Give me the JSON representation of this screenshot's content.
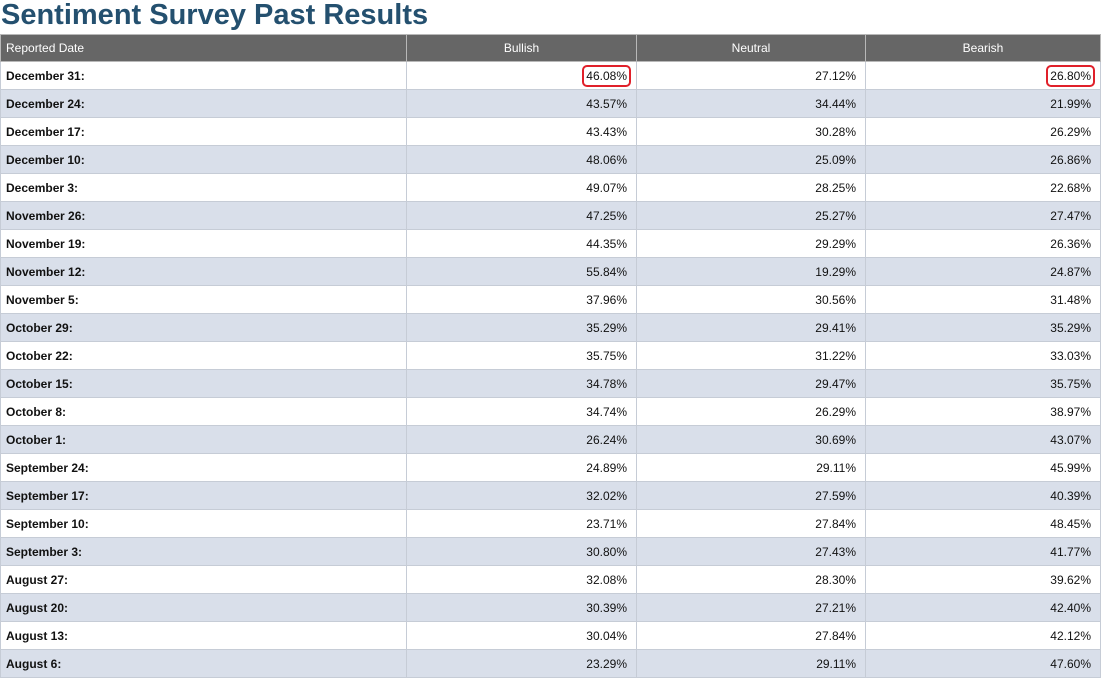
{
  "page": {
    "title": "Sentiment Survey Past Results"
  },
  "table": {
    "headers": {
      "date": "Reported Date",
      "bullish": "Bullish",
      "neutral": "Neutral",
      "bearish": "Bearish"
    },
    "highlight_color": "#e0202a",
    "rows": [
      {
        "date": "December 31:",
        "bullish": "46.08%",
        "neutral": "27.12%",
        "bearish": "26.80%",
        "highlight": [
          "bullish",
          "bearish"
        ]
      },
      {
        "date": "December 24:",
        "bullish": "43.57%",
        "neutral": "34.44%",
        "bearish": "21.99%"
      },
      {
        "date": "December 17:",
        "bullish": "43.43%",
        "neutral": "30.28%",
        "bearish": "26.29%"
      },
      {
        "date": "December 10:",
        "bullish": "48.06%",
        "neutral": "25.09%",
        "bearish": "26.86%"
      },
      {
        "date": "December 3:",
        "bullish": "49.07%",
        "neutral": "28.25%",
        "bearish": "22.68%"
      },
      {
        "date": "November 26:",
        "bullish": "47.25%",
        "neutral": "25.27%",
        "bearish": "27.47%"
      },
      {
        "date": "November 19:",
        "bullish": "44.35%",
        "neutral": "29.29%",
        "bearish": "26.36%"
      },
      {
        "date": "November 12:",
        "bullish": "55.84%",
        "neutral": "19.29%",
        "bearish": "24.87%"
      },
      {
        "date": "November 5:",
        "bullish": "37.96%",
        "neutral": "30.56%",
        "bearish": "31.48%"
      },
      {
        "date": "October 29:",
        "bullish": "35.29%",
        "neutral": "29.41%",
        "bearish": "35.29%"
      },
      {
        "date": "October 22:",
        "bullish": "35.75%",
        "neutral": "31.22%",
        "bearish": "33.03%"
      },
      {
        "date": "October 15:",
        "bullish": "34.78%",
        "neutral": "29.47%",
        "bearish": "35.75%"
      },
      {
        "date": "October 8:",
        "bullish": "34.74%",
        "neutral": "26.29%",
        "bearish": "38.97%"
      },
      {
        "date": "October 1:",
        "bullish": "26.24%",
        "neutral": "30.69%",
        "bearish": "43.07%"
      },
      {
        "date": "September 24:",
        "bullish": "24.89%",
        "neutral": "29.11%",
        "bearish": "45.99%"
      },
      {
        "date": "September 17:",
        "bullish": "32.02%",
        "neutral": "27.59%",
        "bearish": "40.39%"
      },
      {
        "date": "September 10:",
        "bullish": "23.71%",
        "neutral": "27.84%",
        "bearish": "48.45%"
      },
      {
        "date": "September 3:",
        "bullish": "30.80%",
        "neutral": "27.43%",
        "bearish": "41.77%"
      },
      {
        "date": "August 27:",
        "bullish": "32.08%",
        "neutral": "28.30%",
        "bearish": "39.62%"
      },
      {
        "date": "August 20:",
        "bullish": "30.39%",
        "neutral": "27.21%",
        "bearish": "42.40%"
      },
      {
        "date": "August 13:",
        "bullish": "30.04%",
        "neutral": "27.84%",
        "bearish": "42.12%"
      },
      {
        "date": "August 6:",
        "bullish": "23.29%",
        "neutral": "29.11%",
        "bearish": "47.60%"
      }
    ]
  }
}
